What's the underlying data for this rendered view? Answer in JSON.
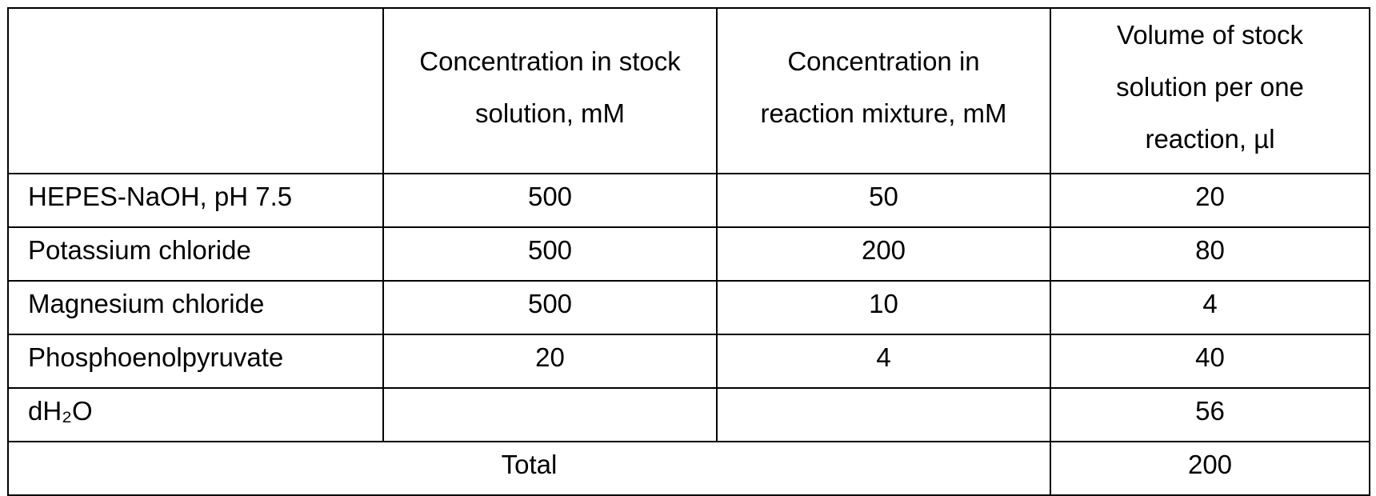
{
  "table": {
    "header": [
      [
        "Concentration in stock",
        "solution, mM"
      ],
      [
        "Concentration in",
        "reaction mixture, mM"
      ],
      [
        "Volume of stock",
        "solution per one",
        "reaction, µl"
      ]
    ],
    "rows": [
      {
        "label": "HEPES-NaOH, pH 7.5",
        "stock": 500,
        "reaction": 50,
        "volume": 20
      },
      {
        "label": "Potassium chloride",
        "stock": 500,
        "reaction": 200,
        "volume": 80
      },
      {
        "label": "Magnesium chloride",
        "stock": 500,
        "reaction": 10,
        "volume": 4
      },
      {
        "label": "Phosphoenolpyruvate",
        "stock": 20,
        "reaction": 4,
        "volume": 40
      },
      {
        "label": "dH₂O",
        "volume": 56
      }
    ],
    "total": {
      "label": "Total",
      "volume": 200
    }
  }
}
